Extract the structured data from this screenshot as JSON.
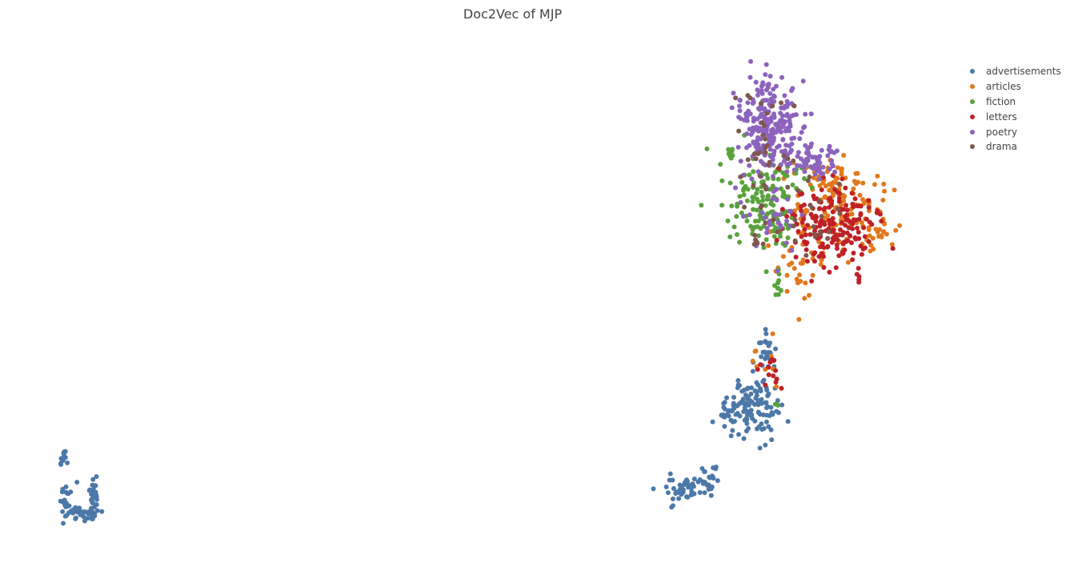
{
  "chart_data": {
    "type": "scatter",
    "title": "Doc2Vec of MJP",
    "xlabel": "",
    "ylabel": "",
    "grid": false,
    "legend_position": "top-right",
    "series": [
      {
        "name": "advertisements",
        "color": "#4c78a8",
        "n": 320,
        "seed": 11,
        "clusters": [
          {
            "x": 78,
            "y": 573,
            "sx": 2,
            "sy": 7,
            "w": 8
          },
          {
            "x": 82,
            "y": 625,
            "sx": 4,
            "sy": 12,
            "w": 12
          },
          {
            "x": 100,
            "y": 642,
            "sx": 10,
            "sy": 4,
            "w": 12
          },
          {
            "x": 118,
            "y": 622,
            "sx": 4,
            "sy": 12,
            "w": 12
          },
          {
            "x": 852,
            "y": 610,
            "sx": 14,
            "sy": 8,
            "w": 14
          },
          {
            "x": 885,
            "y": 605,
            "sx": 7,
            "sy": 14,
            "w": 8
          },
          {
            "x": 910,
            "y": 515,
            "sx": 8,
            "sy": 8,
            "w": 10
          },
          {
            "x": 940,
            "y": 512,
            "sx": 17,
            "sy": 22,
            "w": 45
          },
          {
            "x": 958,
            "y": 440,
            "sx": 6,
            "sy": 14,
            "w": 8
          }
        ]
      },
      {
        "name": "articles",
        "color": "#e2781c",
        "n": 200,
        "seed": 22,
        "clusters": [
          {
            "x": 1045,
            "y": 265,
            "sx": 32,
            "sy": 30,
            "w": 70
          },
          {
            "x": 1000,
            "y": 340,
            "sx": 12,
            "sy": 22,
            "w": 14
          },
          {
            "x": 1100,
            "y": 290,
            "sx": 8,
            "sy": 6,
            "w": 6
          },
          {
            "x": 955,
            "y": 455,
            "sx": 12,
            "sy": 18,
            "w": 6
          },
          {
            "x": 1030,
            "y": 220,
            "sx": 20,
            "sy": 10,
            "w": 8
          }
        ]
      },
      {
        "name": "fiction",
        "color": "#59a23c",
        "n": 170,
        "seed": 33,
        "clusters": [
          {
            "x": 955,
            "y": 255,
            "sx": 22,
            "sy": 28,
            "w": 80
          },
          {
            "x": 913,
            "y": 192,
            "sx": 3,
            "sy": 3,
            "w": 4
          },
          {
            "x": 972,
            "y": 355,
            "sx": 3,
            "sy": 9,
            "w": 5
          },
          {
            "x": 985,
            "y": 215,
            "sx": 15,
            "sy": 10,
            "w": 6
          },
          {
            "x": 971,
            "y": 505,
            "sx": 2,
            "sy": 3,
            "w": 1
          }
        ]
      },
      {
        "name": "letters",
        "color": "#bf2026",
        "n": 200,
        "seed": 44,
        "clusters": [
          {
            "x": 1040,
            "y": 285,
            "sx": 28,
            "sy": 28,
            "w": 80
          },
          {
            "x": 1075,
            "y": 340,
            "sx": 6,
            "sy": 8,
            "w": 4
          },
          {
            "x": 960,
            "y": 470,
            "sx": 8,
            "sy": 12,
            "w": 3
          },
          {
            "x": 990,
            "y": 215,
            "sx": 12,
            "sy": 8,
            "w": 5
          }
        ]
      },
      {
        "name": "poetry",
        "color": "#8c63bd",
        "n": 320,
        "seed": 55,
        "clusters": [
          {
            "x": 962,
            "y": 160,
            "sx": 18,
            "sy": 30,
            "w": 75
          },
          {
            "x": 1018,
            "y": 205,
            "sx": 14,
            "sy": 9,
            "w": 12
          },
          {
            "x": 1040,
            "y": 188,
            "sx": 4,
            "sy": 4,
            "w": 3
          },
          {
            "x": 965,
            "y": 265,
            "sx": 22,
            "sy": 25,
            "w": 10
          }
        ]
      },
      {
        "name": "drama",
        "color": "#7f574e",
        "n": 65,
        "seed": 66,
        "clusters": [
          {
            "x": 960,
            "y": 190,
            "sx": 20,
            "sy": 40,
            "w": 40
          },
          {
            "x": 1010,
            "y": 270,
            "sx": 25,
            "sy": 30,
            "w": 35
          },
          {
            "x": 940,
            "y": 300,
            "sx": 6,
            "sy": 4,
            "w": 5
          }
        ]
      }
    ]
  }
}
